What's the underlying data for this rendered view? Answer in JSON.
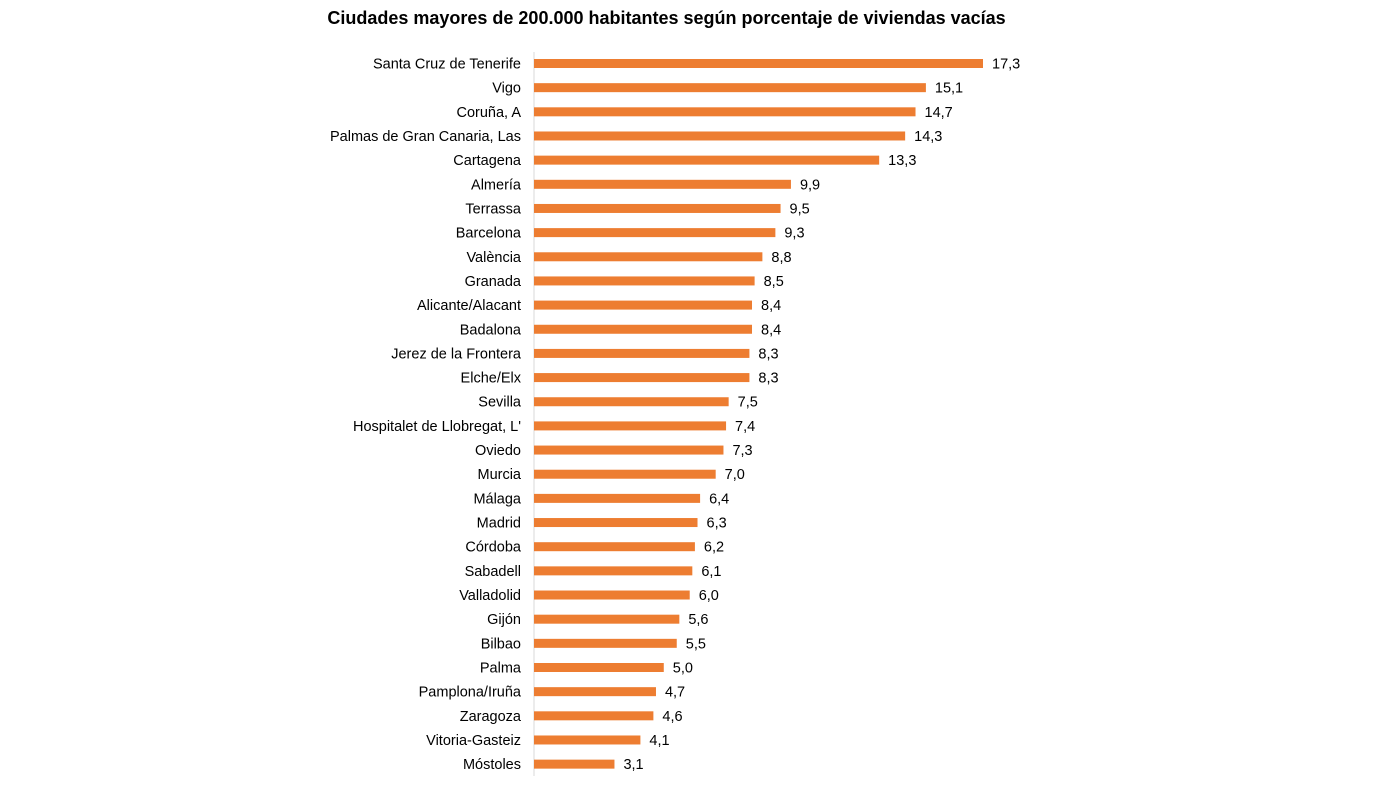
{
  "chart_data": {
    "type": "bar",
    "orientation": "horizontal",
    "title": "Ciudades mayores de 200.000 habitantes según porcentaje de viviendas vacías",
    "xlabel": "",
    "ylabel": "",
    "xlim": [
      0,
      17.3
    ],
    "grid": false,
    "legend": "none",
    "bar_color": "#ED7D31",
    "categories": [
      "Santa Cruz de Tenerife",
      "Vigo",
      "Coruña, A",
      "Palmas de Gran Canaria, Las",
      "Cartagena",
      "Almería",
      "Terrassa",
      "Barcelona",
      "València",
      "Granada",
      "Alicante/Alacant",
      "Badalona",
      "Jerez de la Frontera",
      "Elche/Elx",
      "Sevilla",
      "Hospitalet de Llobregat, L'",
      "Oviedo",
      "Murcia",
      "Málaga",
      "Madrid",
      "Córdoba",
      "Sabadell",
      "Valladolid",
      "Gijón",
      "Bilbao",
      "Palma",
      "Pamplona/Iruña",
      "Zaragoza",
      "Vitoria-Gasteiz",
      "Móstoles"
    ],
    "values": [
      17.3,
      15.1,
      14.7,
      14.3,
      13.3,
      9.9,
      9.5,
      9.3,
      8.8,
      8.5,
      8.4,
      8.4,
      8.3,
      8.3,
      7.5,
      7.4,
      7.3,
      7.0,
      6.4,
      6.3,
      6.2,
      6.1,
      6.0,
      5.6,
      5.5,
      5.0,
      4.7,
      4.6,
      4.1,
      3.1
    ],
    "value_labels": [
      "17,3",
      "15,1",
      "14,7",
      "14,3",
      "13,3",
      "9,9",
      "9,5",
      "9,3",
      "8,8",
      "8,5",
      "8,4",
      "8,4",
      "8,3",
      "8,3",
      "7,5",
      "7,4",
      "7,3",
      "7,0",
      "6,4",
      "6,3",
      "6,2",
      "6,1",
      "6,0",
      "5,6",
      "5,5",
      "5,0",
      "4,7",
      "4,6",
      "4,1",
      "3,1"
    ]
  }
}
